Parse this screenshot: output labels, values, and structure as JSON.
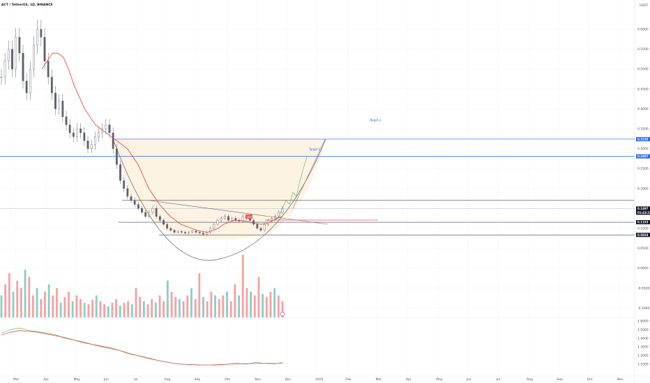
{
  "header": {
    "symbol_title": "ACT / TetherUS, 1D, BINANCE",
    "currency": "USDT"
  },
  "colors": {
    "bull": "#26a69a",
    "bear": "#ef5350",
    "candle": "#5d606b",
    "ma_red": "#e53935",
    "ma_green": "#4caf50",
    "target_line": "#2962ff",
    "cup_fill": "#fdf3e3",
    "cup_curve": "#5d606b",
    "grid": "#f0f3fa",
    "rsi_green": "#4caf50",
    "rsi_red": "#e53935"
  },
  "chart_data": {
    "type": "line",
    "price_axis_ticks": [
      "0.6000",
      "0.5500",
      "0.5000",
      "0.4500",
      "0.4000",
      "0.3500",
      "0.3000",
      "0.2500",
      "0.2000",
      "0.1500",
      "0.1000",
      "0.0500",
      "0.0000",
      "-0.0500",
      "-0.1000"
    ],
    "x_ticks": [
      "Mar",
      "Apr",
      "May",
      "Jun",
      "Jul",
      "Aug",
      "Sep",
      "Oct",
      "Nov",
      "Dec",
      "2025",
      "Feb",
      "Mar",
      "Apr",
      "May",
      "Jun",
      "Jul",
      "Aug",
      "Sep",
      "Oct",
      "Nov"
    ],
    "rsi_axis_ticks": [
      "1.6000",
      "1.5000",
      "1.4000",
      "1.3000",
      "1.2000",
      "1.1000"
    ],
    "levels": {
      "target_2": 0.3239,
      "target_1": 0.2807,
      "resistance": 0.17,
      "current_price": 0.1497,
      "support_1": 0.1153,
      "support_2": 0.0834
    },
    "level_labels": {
      "target_2": "Target 2",
      "target_1": "Target 1"
    },
    "badges": {
      "target_2": "0.3239",
      "target_1": "0.2807",
      "current_price": "0.1497",
      "countdown": "01:43:21",
      "support_1": "0.1153",
      "support_2": "0.0834"
    },
    "sell_badge": "SELL",
    "price_series": [
      0.48,
      0.52,
      0.55,
      0.5,
      0.58,
      0.54,
      0.47,
      0.44,
      0.5,
      0.56,
      0.6,
      0.58,
      0.52,
      0.48,
      0.44,
      0.4,
      0.42,
      0.38,
      0.36,
      0.34,
      0.33,
      0.35,
      0.34,
      0.32,
      0.3,
      0.31,
      0.33,
      0.34,
      0.35,
      0.36,
      0.34,
      0.3,
      0.26,
      0.22,
      0.2,
      0.18,
      0.17,
      0.16,
      0.15,
      0.14,
      0.13,
      0.14,
      0.15,
      0.13,
      0.12,
      0.11,
      0.1,
      0.095,
      0.09,
      0.092,
      0.09,
      0.088,
      0.09,
      0.093,
      0.09,
      0.088,
      0.085,
      0.09,
      0.1,
      0.11,
      0.12,
      0.125,
      0.13,
      0.12,
      0.125,
      0.12,
      0.118,
      0.13,
      0.125,
      0.12,
      0.11,
      0.1,
      0.095,
      0.11,
      0.12,
      0.125,
      0.13,
      0.14,
      0.15
    ],
    "ma_red_series": [
      0.5,
      0.52,
      0.54,
      0.54,
      0.53,
      0.5,
      0.46,
      0.43,
      0.4,
      0.38,
      0.36,
      0.35,
      0.34,
      0.33,
      0.32,
      0.31,
      0.3,
      0.28,
      0.26,
      0.23,
      0.2,
      0.18,
      0.16,
      0.145,
      0.13,
      0.12,
      0.11,
      0.105,
      0.1,
      0.095,
      0.092,
      0.09,
      0.095,
      0.1,
      0.11,
      0.115,
      0.12,
      0.12,
      0.118,
      0.115,
      0.112,
      0.11,
      0.112,
      0.118,
      0.125,
      0.13
    ],
    "projection_series": [
      0.12,
      0.13,
      0.15,
      0.17,
      0.16,
      0.19,
      0.18,
      0.22,
      0.25,
      0.28
    ],
    "volume_series": [
      30,
      45,
      60,
      35,
      50,
      40,
      65,
      55,
      30,
      40,
      25,
      35,
      45,
      30,
      40,
      20,
      28,
      35,
      22,
      30,
      25,
      20,
      18,
      24,
      30,
      22,
      18,
      15,
      20,
      25,
      16,
      20,
      22,
      18,
      40,
      28,
      22,
      18,
      25,
      20,
      30,
      22,
      50,
      35,
      28,
      25,
      22,
      30,
      40,
      25,
      60,
      28,
      22,
      35,
      30,
      25,
      30,
      35,
      22,
      45,
      30,
      85,
      40,
      35,
      30,
      55,
      32,
      28,
      35,
      40,
      30,
      22
    ],
    "rsi_series": [
      1.46,
      1.5,
      1.52,
      1.49,
      1.48,
      1.46,
      1.44,
      1.4,
      1.38,
      1.36,
      1.33,
      1.3,
      1.28,
      1.26,
      1.22,
      1.2,
      1.18,
      1.15,
      1.13,
      1.11,
      1.1,
      1.095,
      1.09,
      1.09,
      1.09,
      1.1,
      1.11,
      1.1,
      1.12,
      1.11,
      1.1,
      1.12
    ],
    "rsi_ma_series": [
      1.44,
      1.47,
      1.49,
      1.48,
      1.47,
      1.45,
      1.43,
      1.41,
      1.38,
      1.35,
      1.33,
      1.31,
      1.29,
      1.26,
      1.23,
      1.2,
      1.17,
      1.15,
      1.13,
      1.11,
      1.1,
      1.095,
      1.09,
      1.09,
      1.095,
      1.1,
      1.105,
      1.105,
      1.11,
      1.11,
      1.11,
      1.11
    ]
  }
}
